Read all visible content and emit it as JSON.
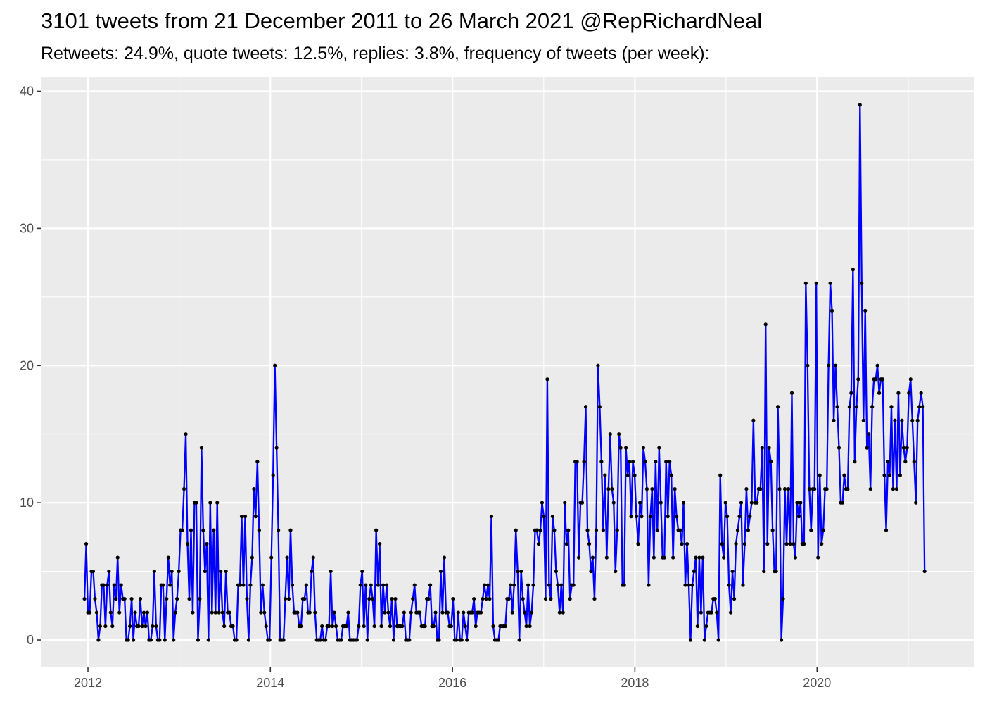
{
  "chart_data": {
    "type": "line",
    "title": "3101 tweets from 21 December 2011 to 26 March 2021 @RepRichardNeal",
    "subtitle": "Retweets: 24.9%, quote tweets: 12.5%, replies: 3.8%, frequency of tweets (per week):",
    "xlabel": "",
    "ylabel": "",
    "x_ticks": [
      "2012",
      "2014",
      "2016",
      "2018",
      "2020"
    ],
    "y_ticks": [
      "0",
      "10",
      "20",
      "30",
      "40"
    ],
    "xlim": [
      "2011-06-26",
      "2021-09-20"
    ],
    "ylim": [
      -2,
      41
    ],
    "grid": true,
    "line_color": "#0000ff",
    "point_color": "#000000",
    "panel_background": "#ebebeb",
    "series": [
      {
        "frequency": "weekly",
        "start": "2011-12-18",
        "values": [
          3,
          7,
          2,
          2,
          5,
          5,
          3,
          2,
          0,
          1,
          4,
          4,
          1,
          4,
          5,
          2,
          1,
          4,
          3,
          6,
          2,
          4,
          3,
          3,
          0,
          0,
          1,
          3,
          0,
          2,
          1,
          1,
          3,
          1,
          2,
          1,
          2,
          0,
          0,
          1,
          5,
          1,
          0,
          0,
          4,
          4,
          0,
          3,
          6,
          4,
          5,
          0,
          2,
          3,
          5,
          8,
          8,
          11,
          15,
          7,
          3,
          8,
          2,
          10,
          10,
          0,
          3,
          14,
          8,
          5,
          7,
          0,
          10,
          2,
          8,
          2,
          10,
          2,
          5,
          2,
          1,
          5,
          2,
          2,
          1,
          1,
          0,
          0,
          4,
          4,
          9,
          4,
          9,
          3,
          0,
          4,
          6,
          11,
          9,
          13,
          8,
          2,
          4,
          2,
          1,
          0,
          0,
          6,
          12,
          20,
          14,
          8,
          0,
          0,
          0,
          3,
          6,
          3,
          8,
          4,
          2,
          2,
          2,
          1,
          1,
          3,
          3,
          4,
          2,
          2,
          5,
          6,
          2,
          0,
          0,
          0,
          1,
          0,
          0,
          1,
          1,
          5,
          1,
          2,
          1,
          0,
          0,
          0,
          1,
          1,
          1,
          2,
          0,
          0,
          0,
          0,
          0,
          1,
          4,
          5,
          1,
          4,
          0,
          3,
          4,
          3,
          1,
          8,
          4,
          7,
          1,
          4,
          2,
          4,
          2,
          1,
          3,
          0,
          3,
          1,
          1,
          1,
          1,
          2,
          0,
          0,
          0,
          2,
          3,
          4,
          2,
          2,
          2,
          1,
          1,
          1,
          3,
          3,
          4,
          1,
          1,
          2,
          0,
          0,
          5,
          2,
          6,
          2,
          2,
          1,
          1,
          3,
          0,
          0,
          2,
          0,
          0,
          2,
          1,
          0,
          2,
          2,
          2,
          3,
          1,
          2,
          2,
          2,
          3,
          4,
          3,
          4,
          3,
          9,
          1,
          0,
          0,
          0,
          1,
          1,
          1,
          1,
          3,
          3,
          4,
          2,
          4,
          8,
          5,
          0,
          5,
          3,
          2,
          1,
          4,
          1,
          2,
          4,
          8,
          8,
          7,
          8,
          10,
          9,
          3,
          19,
          4,
          3,
          9,
          8,
          5,
          4,
          2,
          4,
          2,
          10,
          7,
          8,
          3,
          4,
          4,
          13,
          13,
          6,
          10,
          10,
          13,
          17,
          8,
          7,
          5,
          6,
          3,
          8,
          20,
          17,
          13,
          8,
          12,
          6,
          11,
          15,
          11,
          10,
          5,
          8,
          15,
          14,
          4,
          4,
          14,
          12,
          13,
          9,
          13,
          12,
          9,
          7,
          10,
          9,
          14,
          13,
          11,
          4,
          9,
          11,
          6,
          13,
          8,
          14,
          10,
          6,
          6,
          13,
          9,
          13,
          12,
          6,
          11,
          9,
          8,
          8,
          7,
          10,
          4,
          7,
          4,
          0,
          4,
          5,
          6,
          1,
          6,
          2,
          6,
          0,
          1,
          2,
          2,
          2,
          3,
          3,
          2,
          0,
          12,
          7,
          6,
          10,
          9,
          4,
          2,
          5,
          3,
          7,
          8,
          9,
          10,
          4,
          7,
          11,
          8,
          9,
          10,
          16,
          10,
          10,
          11,
          11,
          14,
          5,
          23,
          7,
          14,
          13,
          8,
          5,
          5,
          17,
          11,
          0,
          3,
          11,
          7,
          11,
          7,
          18,
          7,
          6,
          10,
          9,
          10,
          7,
          7,
          26,
          20,
          11,
          8,
          11,
          11,
          26,
          6,
          12,
          7,
          8,
          11,
          11,
          20,
          26,
          24,
          16,
          20,
          17,
          14,
          10,
          10,
          12,
          11,
          11,
          17,
          18,
          27,
          13,
          17,
          19,
          39,
          26,
          16,
          24,
          14,
          15,
          11,
          17,
          19,
          19,
          20,
          18,
          19,
          19,
          12,
          8,
          13,
          12,
          17,
          11,
          16,
          11,
          18,
          12,
          16,
          14,
          13,
          14,
          18,
          19,
          16,
          13,
          10,
          16,
          17,
          18,
          17,
          5
        ]
      }
    ]
  }
}
